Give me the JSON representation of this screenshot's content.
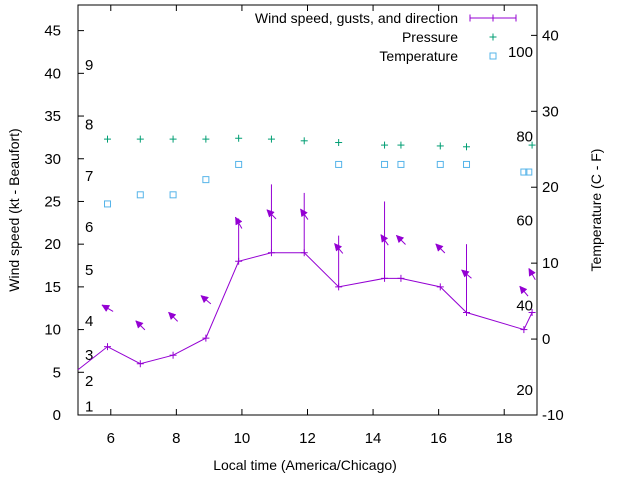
{
  "chart_data": {
    "type": "line",
    "xlabel": "Local time (America/Chicago)",
    "ylabel": "Wind speed (kt - Beaufort)",
    "y2label": "Temperature (C - F)",
    "xlim": [
      5,
      19
    ],
    "ylim": [
      0,
      48
    ],
    "y2lim": [
      -10,
      44
    ],
    "x_ticks": [
      6,
      8,
      10,
      12,
      14,
      16,
      18
    ],
    "y_ticks": [
      0,
      5,
      10,
      15,
      20,
      25,
      30,
      35,
      40,
      45
    ],
    "y2_ticks": [
      -10,
      0,
      10,
      20,
      30,
      40
    ],
    "beaufort_labels": [
      {
        "label": "1",
        "kt": 1
      },
      {
        "label": "2",
        "kt": 4
      },
      {
        "label": "3",
        "kt": 7
      },
      {
        "label": "4",
        "kt": 11
      },
      {
        "label": "5",
        "kt": 17
      },
      {
        "label": "6",
        "kt": 22
      },
      {
        "label": "7",
        "kt": 28
      },
      {
        "label": "8",
        "kt": 34
      },
      {
        "label": "9",
        "kt": 41
      }
    ],
    "fahrenheit_labels": [
      {
        "label": "20",
        "c": -6.7
      },
      {
        "label": "40",
        "c": 4.4
      },
      {
        "label": "60",
        "c": 15.6
      },
      {
        "label": "80",
        "c": 26.7
      },
      {
        "label": "100",
        "c": 37.8
      }
    ],
    "legend": {
      "position": "top-right",
      "entries": [
        "Wind speed, gusts, and direction",
        "Pressure",
        "Temperature"
      ]
    },
    "colors": {
      "wind": "#9400d3",
      "pressure": "#009e73",
      "temperature": "#56b4e9"
    },
    "wind": {
      "name": "Wind speed, gusts, and direction",
      "x": [
        4.9,
        5.9,
        6.9,
        7.9,
        8.9,
        9.9,
        10.9,
        11.9,
        12.95,
        14.35,
        14.85,
        16.05,
        16.85,
        18.6,
        18.85
      ],
      "speed": [
        5,
        8,
        6,
        7,
        9,
        18,
        19,
        19,
        15,
        16,
        16,
        15,
        12,
        10,
        12
      ],
      "gust": [
        null,
        null,
        null,
        null,
        null,
        23,
        27,
        26,
        21,
        25,
        null,
        null,
        20,
        null,
        null
      ],
      "direction_deg": [
        null,
        120,
        135,
        135,
        130,
        150,
        135,
        145,
        140,
        145,
        135,
        135,
        130,
        140,
        150
      ]
    },
    "pressure": {
      "name": "Pressure",
      "x": [
        5.9,
        6.9,
        7.9,
        8.9,
        9.9,
        10.9,
        11.9,
        12.95,
        14.35,
        14.85,
        16.05,
        16.85,
        18.85
      ],
      "y": [
        32.3,
        32.3,
        32.3,
        32.3,
        32.4,
        32.3,
        32.1,
        31.9,
        31.6,
        31.6,
        31.5,
        31.4,
        31.6
      ]
    },
    "temperature": {
      "name": "Temperature",
      "x": [
        5.9,
        6.9,
        7.9,
        8.9,
        9.9,
        10.9,
        12.95,
        14.35,
        14.85,
        16.05,
        16.85,
        18.6,
        18.75
      ],
      "y": [
        17.8,
        19.0,
        19.0,
        21.0,
        23.0,
        null,
        23.0,
        23.0,
        23.0,
        23.0,
        23.0,
        22.0,
        22.0
      ]
    }
  }
}
